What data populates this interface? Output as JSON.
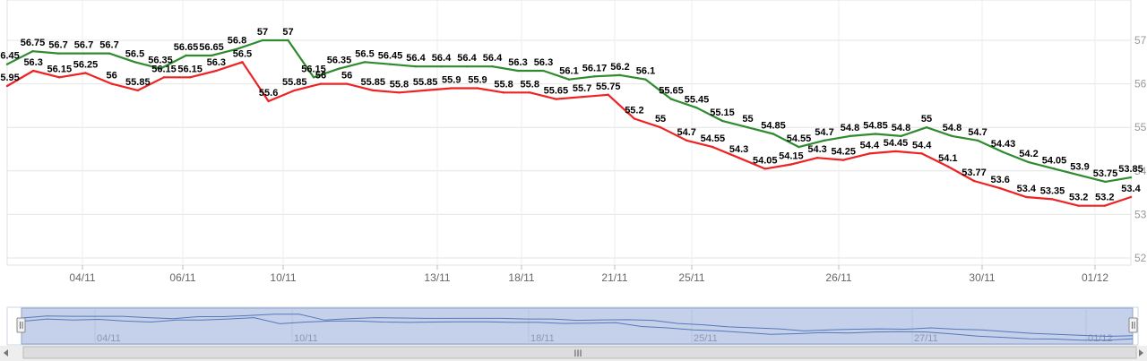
{
  "chart_data": {
    "type": "line",
    "ylim": [
      52,
      57
    ],
    "y_ticks": [
      "57",
      "56",
      "55",
      "54",
      "53",
      "52"
    ],
    "x_ticks": [
      "04/11",
      "06/11",
      "10/11",
      "13/11",
      "18/11",
      "21/11",
      "25/11",
      "26/11",
      "30/11",
      "01/12"
    ],
    "series": [
      {
        "color": "#2e8b2e",
        "values": [
          56.45,
          56.75,
          56.7,
          56.7,
          56.7,
          56.5,
          56.35,
          56.65,
          56.65,
          56.8,
          57,
          57,
          56.15,
          56.35,
          56.5,
          56.45,
          56.4,
          56.4,
          56.4,
          56.4,
          56.3,
          56.3,
          56.1,
          56.17,
          56.2,
          56.1,
          55.65,
          55.45,
          55.15,
          55,
          54.85,
          54.55,
          54.7,
          54.8,
          54.85,
          54.8,
          55,
          54.8,
          54.7,
          54.43,
          54.2,
          54.05,
          53.9,
          53.75,
          53.85
        ]
      },
      {
        "color": "#ee2222",
        "values": [
          55.95,
          56.3,
          56.15,
          56.25,
          56,
          55.85,
          56.15,
          56.15,
          56.3,
          56.5,
          55.6,
          55.85,
          56,
          56,
          55.85,
          55.8,
          55.85,
          55.9,
          55.9,
          55.8,
          55.8,
          55.65,
          55.7,
          55.75,
          55.2,
          55,
          54.7,
          54.55,
          54.3,
          54.05,
          54.15,
          54.3,
          54.25,
          54.4,
          54.45,
          54.4,
          54.1,
          53.77,
          53.6,
          53.4,
          53.35,
          53.2,
          53.2,
          53.4
        ]
      }
    ]
  },
  "navigator": {
    "labels": [
      "04/11",
      "10/11",
      "18/11",
      "25/11",
      "27/11",
      "01/12"
    ],
    "scroll_grip": "III"
  }
}
